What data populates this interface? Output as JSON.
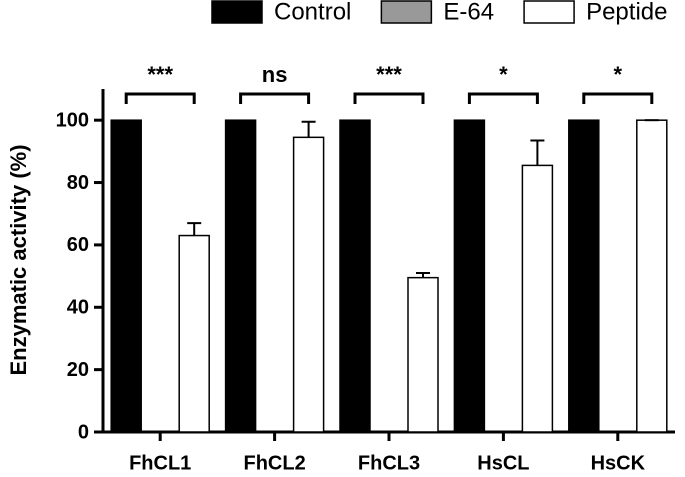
{
  "chart_data": {
    "type": "bar",
    "ylabel": "Enzymatic activity (%)",
    "categories": [
      "FhCL1",
      "FhCL2",
      "FhCL3",
      "HsCL",
      "HsCK"
    ],
    "series": [
      {
        "name": "Control",
        "color": "#000000",
        "values": [
          100,
          100,
          100,
          100,
          100
        ]
      },
      {
        "name": "E-64",
        "color": "#999999",
        "values": [
          0,
          0,
          0,
          0,
          0
        ]
      },
      {
        "name": "Peptide",
        "color": "#ffffff",
        "values": [
          63,
          94.5,
          49.5,
          85.5,
          100
        ],
        "errors": [
          4,
          5,
          1.5,
          8,
          0
        ]
      }
    ],
    "annotations": [
      "***",
      "ns",
      "***",
      "*",
      "*"
    ],
    "ylim": [
      0,
      110
    ],
    "yticks": [
      0,
      20,
      40,
      60,
      80,
      100
    ],
    "grid": false,
    "legend": "top-right"
  }
}
